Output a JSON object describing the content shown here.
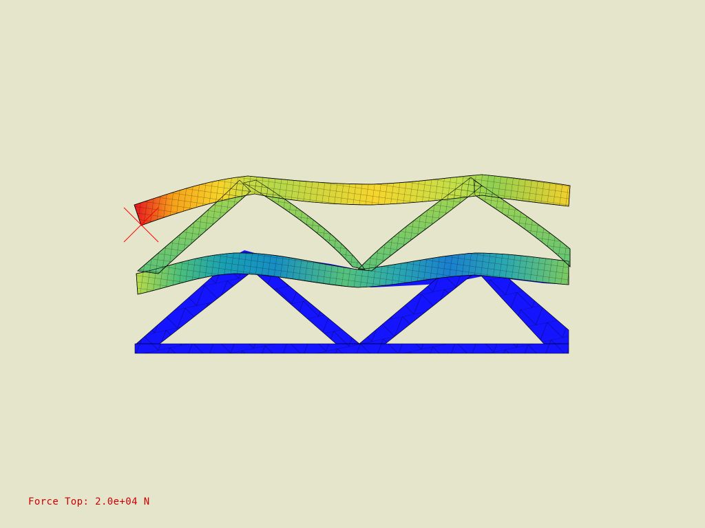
{
  "viewport": {
    "background_color": "#e5e5cc",
    "mesh_line_color": "#000000",
    "marker_color": "#ff0000"
  },
  "status": {
    "force_label": "Force Top: 2.0e+04 N",
    "color": "#cc0000"
  },
  "scene": {
    "objects": [
      {
        "name": "deformed-truss",
        "color_scale": "jet",
        "state": "deformed"
      },
      {
        "name": "reference-truss",
        "color": "#1414ff",
        "state": "undeformed"
      }
    ],
    "marker_icon": "load-point-cross-icon"
  }
}
